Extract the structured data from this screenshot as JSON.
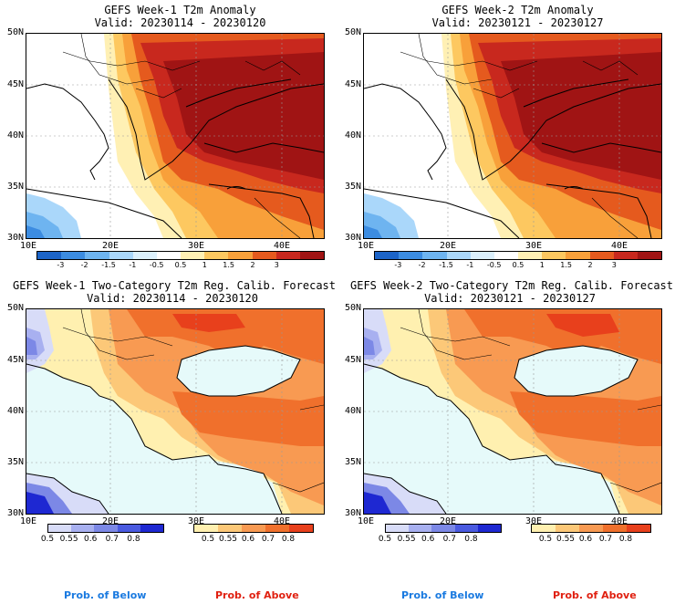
{
  "panels": {
    "tl": {
      "title": "GEFS Week-1 T2m Anomaly",
      "valid": "Valid: 20230114 - 20230120"
    },
    "tr": {
      "title": "GEFS Week-2 T2m Anomaly",
      "valid": "Valid: 20230121 - 20230127"
    },
    "bl": {
      "title": "GEFS Week-1 Two-Category T2m Reg. Calib. Forecast",
      "valid": "Valid: 20230114 - 20230120"
    },
    "br": {
      "title": "GEFS Week-2 Two-Category T2m Reg. Calib. Forecast",
      "valid": "Valid: 20230121 - 20230127"
    }
  },
  "axes": {
    "lat_labels": [
      "50N",
      "45N",
      "40N",
      "35N",
      "30N"
    ],
    "lon_labels": [
      "10E",
      "20E",
      "30E",
      "40E"
    ]
  },
  "anomaly_colorbar": {
    "labels": [
      "-3",
      "-2",
      "-1.5",
      "-1",
      "-0.5",
      "0.5",
      "1",
      "1.5",
      "2",
      "3"
    ],
    "colors": [
      "#1c64c8",
      "#3c8ce1",
      "#6eb4f0",
      "#aad7fa",
      "#dcf0fc",
      "#ffffff",
      "#fff0b4",
      "#fdc860",
      "#f8a03a",
      "#e55a1e",
      "#c8281e",
      "#a01414"
    ]
  },
  "prob_colorbar": {
    "below_labels": [
      "0.5",
      "0.55",
      "0.6",
      "0.7",
      "0.8"
    ],
    "above_labels": [
      "0.5",
      "0.55",
      "0.6",
      "0.7",
      "0.8"
    ],
    "below_colors": [
      "#d8dcf8",
      "#a8b0f0",
      "#7c88e6",
      "#4a5ae0",
      "#1e28d2"
    ],
    "above_colors": [
      "#fff0b0",
      "#fcc878",
      "#f89a52",
      "#f0702c",
      "#e8401c"
    ]
  },
  "legend": {
    "below": "Prob. of Below",
    "above": "Prob. of Above",
    "below_color": "#1a7ae0",
    "above_color": "#e02010"
  },
  "colors": {
    "sea": "#e6fafa",
    "land_border": "#000000"
  }
}
